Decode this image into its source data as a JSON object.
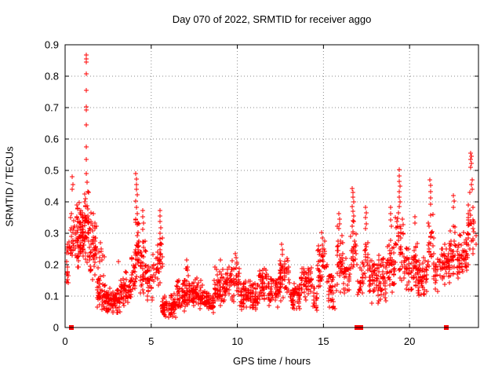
{
  "title": "Day 070 of 2022, SRMTID for receiver aggo",
  "chart_data": {
    "type": "scatter",
    "title": "Day 070 of 2022, SRMTID for receiver aggo",
    "xlabel": "GPS time / hours",
    "ylabel": "SRMTID / TECUs",
    "xlim": [
      0,
      24
    ],
    "ylim": [
      0,
      0.9
    ],
    "x_tick_values": [
      0,
      5,
      10,
      15,
      20
    ],
    "x_tick_labels": [
      "0",
      "5",
      "10",
      "15",
      "20"
    ],
    "y_tick_values": [
      0,
      0.1,
      0.2,
      0.3,
      0.4,
      0.5,
      0.6,
      0.7,
      0.8,
      0.9
    ],
    "y_tick_labels": [
      "0",
      "0.1",
      "0.2",
      "0.3",
      "0.4",
      "0.5",
      "0.6",
      "0.7",
      "0.8",
      "0.9"
    ],
    "grid": true,
    "legend": "none",
    "marker": "plus",
    "marker_color": "#ff0000",
    "grid_color": "#8a8a8a",
    "axis_color": "#000000",
    "background": "#ffffff",
    "seed": 20220070,
    "zero_line_marker": "filled-square",
    "zero_line_points_x": [
      0.38,
      16.95,
      17.15,
      22.15
    ],
    "outlier_points": [
      [
        0.42,
        0.48
      ],
      [
        0.45,
        0.455
      ],
      [
        0.4,
        0.44
      ],
      [
        1.22,
        0.868
      ],
      [
        1.24,
        0.855
      ],
      [
        1.22,
        0.845
      ],
      [
        1.23,
        0.807
      ],
      [
        1.22,
        0.755
      ],
      [
        1.25,
        0.702
      ],
      [
        1.22,
        0.693
      ],
      [
        1.24,
        0.645
      ],
      [
        1.22,
        0.575
      ],
      [
        1.24,
        0.535
      ],
      [
        1.21,
        0.49
      ],
      [
        1.28,
        0.462
      ],
      [
        2.05,
        0.27
      ],
      [
        2.1,
        0.242
      ],
      [
        3.1,
        0.21
      ],
      [
        4.12,
        0.49
      ],
      [
        4.15,
        0.472
      ],
      [
        4.13,
        0.455
      ],
      [
        4.16,
        0.44
      ],
      [
        4.18,
        0.422
      ],
      [
        4.11,
        0.402
      ],
      [
        4.15,
        0.383
      ],
      [
        4.2,
        0.362
      ],
      [
        4.12,
        0.345
      ],
      [
        4.17,
        0.328
      ],
      [
        4.5,
        0.372
      ],
      [
        4.53,
        0.352
      ],
      [
        4.55,
        0.333
      ],
      [
        4.5,
        0.312
      ],
      [
        5.5,
        0.372
      ],
      [
        5.52,
        0.355
      ],
      [
        5.49,
        0.338
      ],
      [
        5.54,
        0.318
      ],
      [
        5.5,
        0.3
      ],
      [
        5.52,
        0.283
      ],
      [
        5.55,
        0.268
      ],
      [
        5.5,
        0.248
      ],
      [
        5.53,
        0.232
      ],
      [
        9.0,
        0.215
      ],
      [
        9.88,
        0.235
      ],
      [
        9.93,
        0.223
      ],
      [
        12.58,
        0.265
      ],
      [
        12.62,
        0.248
      ],
      [
        12.6,
        0.232
      ],
      [
        14.9,
        0.302
      ],
      [
        14.94,
        0.286
      ],
      [
        15.88,
        0.362
      ],
      [
        15.92,
        0.345
      ],
      [
        15.95,
        0.33
      ],
      [
        15.9,
        0.315
      ],
      [
        16.68,
        0.443
      ],
      [
        16.72,
        0.43
      ],
      [
        16.7,
        0.415
      ],
      [
        16.74,
        0.4
      ],
      [
        16.69,
        0.386
      ],
      [
        16.72,
        0.37
      ],
      [
        16.75,
        0.354
      ],
      [
        16.7,
        0.34
      ],
      [
        17.44,
        0.382
      ],
      [
        17.47,
        0.365
      ],
      [
        17.45,
        0.349
      ],
      [
        17.5,
        0.331
      ],
      [
        17.46,
        0.315
      ],
      [
        18.88,
        0.382
      ],
      [
        18.92,
        0.362
      ],
      [
        18.9,
        0.342
      ],
      [
        18.94,
        0.322
      ],
      [
        19.38,
        0.502
      ],
      [
        19.42,
        0.483
      ],
      [
        19.4,
        0.466
      ],
      [
        19.44,
        0.45
      ],
      [
        19.39,
        0.432
      ],
      [
        19.42,
        0.416
      ],
      [
        19.45,
        0.4
      ],
      [
        19.4,
        0.386
      ],
      [
        20.3,
        0.352
      ],
      [
        20.33,
        0.332
      ],
      [
        21.18,
        0.47
      ],
      [
        21.22,
        0.452
      ],
      [
        21.2,
        0.432
      ],
      [
        21.24,
        0.412
      ],
      [
        21.2,
        0.392
      ],
      [
        22.55,
        0.42
      ],
      [
        22.6,
        0.402
      ],
      [
        22.56,
        0.382
      ],
      [
        23.55,
        0.556
      ],
      [
        23.6,
        0.546
      ],
      [
        23.56,
        0.536
      ],
      [
        23.61,
        0.522
      ],
      [
        23.55,
        0.51
      ],
      [
        23.64,
        0.47
      ],
      [
        23.59,
        0.455
      ],
      [
        23.64,
        0.44
      ],
      [
        23.5,
        0.43
      ]
    ],
    "density_bands": [
      [
        0.05,
        0.35,
        0.07,
        0.33,
        22
      ],
      [
        0.3,
        0.65,
        0.18,
        0.42,
        28
      ],
      [
        0.65,
        1.1,
        0.18,
        0.42,
        80
      ],
      [
        1.1,
        1.4,
        0.2,
        0.45,
        40
      ],
      [
        1.4,
        1.85,
        0.13,
        0.38,
        55
      ],
      [
        1.85,
        2.35,
        0.05,
        0.18,
        45
      ],
      [
        1.9,
        2.3,
        0.18,
        0.26,
        8
      ],
      [
        2.35,
        3.2,
        0.04,
        0.13,
        85
      ],
      [
        3.2,
        3.85,
        0.06,
        0.18,
        55
      ],
      [
        3.85,
        4.1,
        0.08,
        0.25,
        25
      ],
      [
        4.05,
        4.3,
        0.14,
        0.36,
        30
      ],
      [
        4.3,
        4.75,
        0.1,
        0.3,
        40
      ],
      [
        4.75,
        5.1,
        0.07,
        0.22,
        28
      ],
      [
        5.1,
        5.45,
        0.08,
        0.28,
        22
      ],
      [
        5.45,
        5.7,
        0.12,
        0.3,
        15
      ],
      [
        5.6,
        6.45,
        0.03,
        0.11,
        75
      ],
      [
        6.45,
        7.15,
        0.04,
        0.16,
        65
      ],
      [
        7.0,
        7.15,
        0.15,
        0.22,
        6
      ],
      [
        7.15,
        8.05,
        0.05,
        0.16,
        85
      ],
      [
        8.05,
        8.65,
        0.04,
        0.12,
        55
      ],
      [
        8.65,
        9.35,
        0.06,
        0.2,
        65
      ],
      [
        9.35,
        10.15,
        0.07,
        0.22,
        65
      ],
      [
        10.15,
        11.25,
        0.05,
        0.15,
        95
      ],
      [
        11.25,
        11.75,
        0.08,
        0.2,
        45
      ],
      [
        11.75,
        12.45,
        0.06,
        0.17,
        55
      ],
      [
        12.45,
        13.05,
        0.07,
        0.24,
        55
      ],
      [
        13.05,
        13.65,
        0.05,
        0.15,
        55
      ],
      [
        13.65,
        14.35,
        0.08,
        0.2,
        55
      ],
      [
        14.35,
        14.65,
        0.04,
        0.13,
        22
      ],
      [
        14.65,
        15.25,
        0.1,
        0.29,
        45
      ],
      [
        15.25,
        15.75,
        0.05,
        0.18,
        35
      ],
      [
        15.75,
        16.15,
        0.1,
        0.33,
        35
      ],
      [
        16.15,
        16.55,
        0.1,
        0.25,
        28
      ],
      [
        16.55,
        16.95,
        0.14,
        0.36,
        28
      ],
      [
        16.95,
        17.35,
        0.09,
        0.22,
        22
      ],
      [
        17.35,
        17.65,
        0.13,
        0.3,
        16
      ],
      [
        17.65,
        18.65,
        0.07,
        0.25,
        90
      ],
      [
        18.65,
        19.15,
        0.1,
        0.3,
        45
      ],
      [
        19.15,
        19.65,
        0.13,
        0.38,
        38
      ],
      [
        19.65,
        20.45,
        0.1,
        0.28,
        65
      ],
      [
        20.45,
        21.05,
        0.09,
        0.23,
        55
      ],
      [
        21.05,
        21.45,
        0.13,
        0.38,
        28
      ],
      [
        21.45,
        22.35,
        0.11,
        0.27,
        65
      ],
      [
        22.35,
        22.85,
        0.13,
        0.35,
        38
      ],
      [
        22.85,
        23.35,
        0.14,
        0.32,
        42
      ],
      [
        23.35,
        23.9,
        0.18,
        0.42,
        35
      ]
    ]
  }
}
